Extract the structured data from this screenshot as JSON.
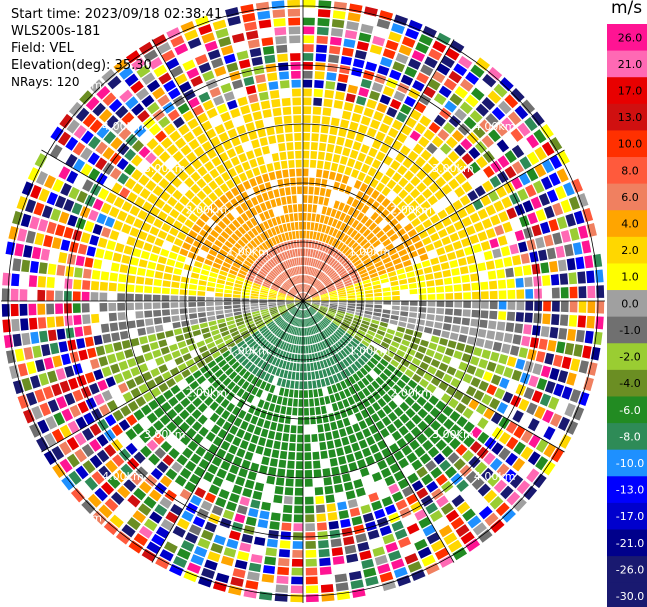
{
  "info": {
    "start_time": "Start time: 2023/09/18 02:38:41",
    "instrument": "WLS200s-181",
    "field": "Field: VEL",
    "elevation": "Elevation(deg): 35.30",
    "nrays": "NRays: 120"
  },
  "chart_data": {
    "type": "ppi",
    "field": "VEL",
    "units": "m/s",
    "range_ring_labels": [
      "1.00km",
      "2.00km",
      "3.00km",
      "4.00km",
      "5.00km"
    ],
    "colorbar": {
      "unit": "m/s",
      "ticks": [
        "26.0",
        "21.0",
        "17.0",
        "13.0",
        "10.0",
        "8.0",
        "6.0",
        "4.0",
        "2.0",
        "1.0",
        "0.0",
        "-1.0",
        "-2.0",
        "-4.0",
        "-6.0",
        "-8.0",
        "-10.0",
        "-13.0",
        "-17.0",
        "-21.0",
        "-26.0",
        "-30.0"
      ],
      "colors": [
        "#ff1493",
        "#ff69b4",
        "#e80000",
        "#d01010",
        "#ff3000",
        "#ff5a3c",
        "#f08060",
        "#ffa500",
        "#ffd700",
        "#ffff00",
        "#a0a0a0",
        "#707070",
        "#9acd32",
        "#6b8e23",
        "#228b22",
        "#2e8b57",
        "#1e90ff",
        "#0000ff",
        "#0000cd",
        "#00008b",
        "#191970",
        "#191970"
      ]
    }
  }
}
